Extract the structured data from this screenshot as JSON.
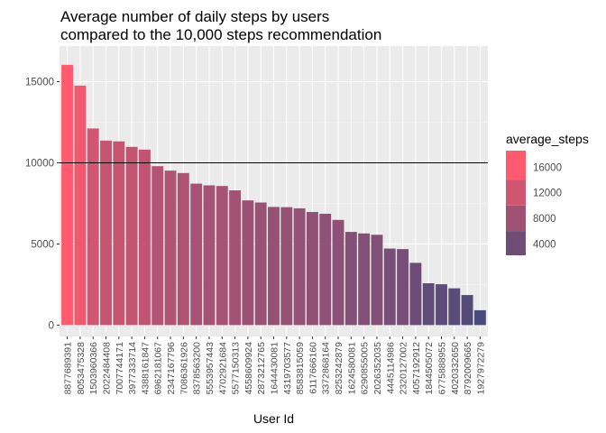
{
  "chart_data": {
    "type": "bar",
    "title_lines": [
      "Average number of daily steps by users",
      "compared to the 10,000 steps recommendation"
    ],
    "xlabel": "User Id",
    "ylabel": "",
    "ylim": [
      -700,
      17200
    ],
    "yticks": [
      0,
      5000,
      10000,
      15000
    ],
    "reference_line": 10000,
    "grid": true,
    "legend_position": "right",
    "categories": [
      "8877689391",
      "8053475328",
      "1503960366",
      "2022484408",
      "7007744171",
      "3977333714",
      "4388161847",
      "6962181067",
      "2347167796",
      "7086361926",
      "8378563200",
      "5553957443",
      "4702921684",
      "5577150313",
      "4558609924",
      "2873212765",
      "1644430081",
      "4319703577",
      "8583815059",
      "6117666160",
      "3372868164",
      "8253242879",
      "1624580081",
      "6290855005",
      "2026352035",
      "4445114986",
      "2320127002",
      "4057192912",
      "1844505072",
      "6775888955",
      "4020332650",
      "8792009665",
      "1927972279"
    ],
    "values": [
      16040,
      14760,
      12117,
      11371,
      11323,
      10985,
      10814,
      9795,
      9520,
      9372,
      8718,
      8613,
      8573,
      8304,
      7685,
      7556,
      7283,
      7268,
      7198,
      6973,
      6862,
      6482,
      5743,
      5649,
      5567,
      4717,
      4685,
      3838,
      2580,
      2520,
      2267,
      1854,
      916
    ],
    "legend": {
      "title": "average_steps",
      "labels": [
        "16000",
        "12000",
        "8000",
        "4000"
      ],
      "label_values": [
        16000,
        12000,
        8000,
        4000
      ]
    },
    "colors": {
      "low": "#4a4a7a",
      "high": "#ff5a6e",
      "panel": "#ebebeb",
      "grid_major": "#ffffff",
      "grid_minor": "#f5f5f5",
      "axis_text": "#4d4d4d",
      "reference_line": "#000000"
    }
  }
}
